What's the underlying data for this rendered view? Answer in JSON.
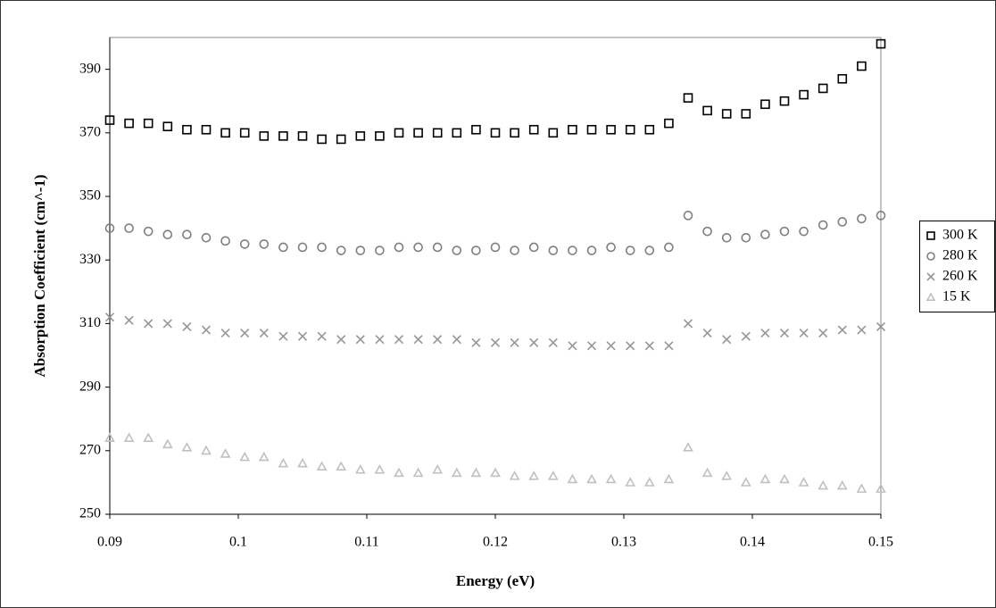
{
  "chart_data": {
    "type": "scatter",
    "xlabel": "Energy (eV)",
    "ylabel": "Absorption Coefficient (cm^-1)",
    "xlim": [
      0.09,
      0.15
    ],
    "xticks": [
      0.09,
      0.1,
      0.11,
      0.12,
      0.13,
      0.14,
      0.15
    ],
    "ylim": [
      250,
      400
    ],
    "yticks": [
      250,
      270,
      290,
      310,
      330,
      350,
      370,
      390
    ],
    "x": [
      0.09,
      0.0915,
      0.093,
      0.0945,
      0.096,
      0.0975,
      0.099,
      0.1005,
      0.102,
      0.1035,
      0.105,
      0.1065,
      0.108,
      0.1095,
      0.111,
      0.1125,
      0.114,
      0.1155,
      0.117,
      0.1185,
      0.12,
      0.1215,
      0.123,
      0.1245,
      0.126,
      0.1275,
      0.129,
      0.1305,
      0.132,
      0.1335,
      0.135,
      0.1365,
      0.138,
      0.1395,
      0.141,
      0.1425,
      0.144,
      0.1455,
      0.147,
      0.1485,
      0.15
    ],
    "legend": "right",
    "series": [
      {
        "name": "300 K",
        "color": "#000000",
        "marker": "square",
        "values": [
          374,
          373,
          373,
          372,
          371,
          371,
          370,
          370,
          369,
          369,
          369,
          368,
          368,
          369,
          369,
          370,
          370,
          370,
          370,
          371,
          370,
          370,
          371,
          370,
          371,
          371,
          371,
          371,
          371,
          373,
          381,
          377,
          376,
          376,
          379,
          380,
          382,
          384,
          387,
          391,
          398
        ]
      },
      {
        "name": "280 K",
        "color": "#7f7f7f",
        "marker": "circle",
        "values": [
          340,
          340,
          339,
          338,
          338,
          337,
          336,
          335,
          335,
          334,
          334,
          334,
          333,
          333,
          333,
          334,
          334,
          334,
          333,
          333,
          334,
          333,
          334,
          333,
          333,
          333,
          334,
          333,
          333,
          334,
          344,
          339,
          337,
          337,
          338,
          339,
          339,
          341,
          342,
          343,
          344
        ]
      },
      {
        "name": "260 K",
        "color": "#969696",
        "marker": "cross",
        "values": [
          312,
          311,
          310,
          310,
          309,
          308,
          307,
          307,
          307,
          306,
          306,
          306,
          305,
          305,
          305,
          305,
          305,
          305,
          305,
          304,
          304,
          304,
          304,
          304,
          303,
          303,
          303,
          303,
          303,
          303,
          310,
          307,
          305,
          306,
          307,
          307,
          307,
          307,
          308,
          308,
          309
        ]
      },
      {
        "name": "15 K",
        "color": "#c0c0c0",
        "marker": "triangle",
        "values": [
          274,
          274,
          274,
          272,
          271,
          270,
          269,
          268,
          268,
          266,
          266,
          265,
          265,
          264,
          264,
          263,
          263,
          264,
          263,
          263,
          263,
          262,
          262,
          262,
          261,
          261,
          261,
          260,
          260,
          261,
          271,
          263,
          262,
          260,
          261,
          261,
          260,
          259,
          259,
          258,
          258
        ]
      }
    ]
  }
}
